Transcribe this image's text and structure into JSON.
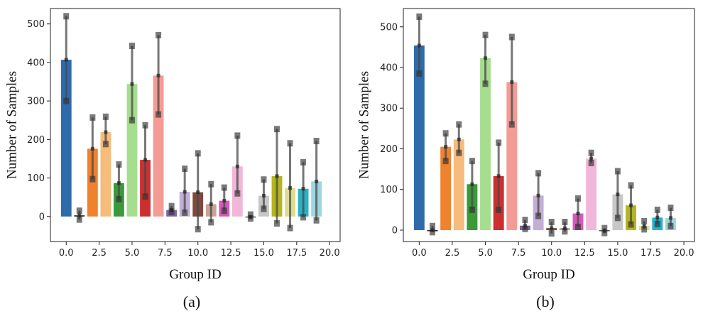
{
  "chart_data": [
    {
      "type": "bar",
      "caption": "(a)",
      "xlabel": "Group ID",
      "ylabel": "Number of Samples",
      "xlim": [
        -1.2,
        20.8
      ],
      "ylim": [
        -65,
        540
      ],
      "xticks": [
        0.0,
        2.5,
        5.0,
        7.5,
        10.0,
        12.5,
        15.0,
        17.5,
        20.0
      ],
      "xtick_labels": [
        "0.0",
        "2.5",
        "5.0",
        "7.5",
        "10.0",
        "12.5",
        "15.0",
        "17.5",
        "20.0"
      ],
      "yticks": [
        0,
        100,
        200,
        300,
        400,
        500
      ],
      "ytick_labels": [
        "0",
        "100",
        "200",
        "300",
        "400",
        "500"
      ],
      "groups": [
        0,
        1,
        2,
        3,
        4,
        5,
        6,
        7,
        8,
        9,
        10,
        11,
        12,
        13,
        14,
        15,
        16,
        17,
        18,
        19
      ],
      "values": [
        407,
        3,
        176,
        219,
        87,
        344,
        147,
        366,
        17,
        64,
        63,
        32,
        41,
        130,
        -2,
        54,
        105,
        74,
        72,
        91
      ],
      "err_low": [
        300,
        -8,
        97,
        188,
        45,
        250,
        52,
        265,
        12,
        10,
        -33,
        -15,
        15,
        60,
        -5,
        20,
        -18,
        -30,
        -2,
        -10
      ],
      "err_high": [
        520,
        15,
        257,
        259,
        135,
        443,
        237,
        471,
        27,
        124,
        164,
        84,
        75,
        210,
        5,
        96,
        227,
        190,
        141,
        196
      ]
    },
    {
      "type": "bar",
      "caption": "(b)",
      "xlabel": "Group ID",
      "ylabel": "Number of Samples",
      "xlim": [
        -1.2,
        20.8
      ],
      "ylim": [
        -28,
        545
      ],
      "xticks": [
        0.0,
        2.5,
        5.0,
        7.5,
        10.0,
        12.5,
        15.0,
        17.5,
        20.0
      ],
      "xtick_labels": [
        "0.0",
        "2.5",
        "5.0",
        "7.5",
        "10.0",
        "12.5",
        "15.0",
        "17.5",
        "20.0"
      ],
      "yticks": [
        0,
        100,
        200,
        300,
        400,
        500
      ],
      "ytick_labels": [
        "0",
        "100",
        "200",
        "300",
        "400",
        "500"
      ],
      "groups": [
        0,
        1,
        2,
        3,
        4,
        5,
        6,
        7,
        8,
        9,
        10,
        11,
        12,
        13,
        14,
        15,
        16,
        17,
        18,
        19
      ],
      "values": [
        454,
        0,
        205,
        223,
        113,
        423,
        133,
        364,
        11,
        85,
        5,
        5,
        41,
        176,
        -2,
        88,
        61,
        10,
        31,
        30
      ],
      "err_low": [
        385,
        -5,
        170,
        190,
        50,
        360,
        50,
        260,
        3,
        35,
        -8,
        -3,
        8,
        165,
        -7,
        30,
        14,
        2,
        15,
        10
      ],
      "err_high": [
        525,
        10,
        238,
        260,
        170,
        480,
        215,
        475,
        25,
        140,
        20,
        20,
        78,
        190,
        5,
        145,
        110,
        22,
        50,
        55
      ]
    }
  ],
  "palette": [
    "#2f6bab",
    "#222222",
    "#f0822e",
    "#f7bb7c",
    "#3a9a3a",
    "#a6dd8e",
    "#cc2f2f",
    "#f49b95",
    "#7e66a8",
    "#c3afd4",
    "#7d4a3d",
    "#c8a397",
    "#d35bb8",
    "#f0b7d8",
    "#555555",
    "#c7c7c7",
    "#b5b520",
    "#dcdc8e",
    "#27b2c8",
    "#9fd5e0"
  ],
  "error_color": "#4a4a4a"
}
